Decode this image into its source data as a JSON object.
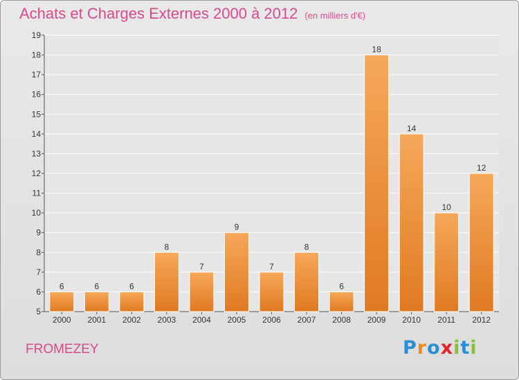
{
  "title": "Achats et Charges Externes 2000 à 2012",
  "subtitle": "(en milliers d'€)",
  "location": "FROMEZEY",
  "brand": {
    "text": "Proxiti",
    "letters": [
      "P",
      "r",
      "o",
      "x",
      "i",
      "t",
      "i"
    ],
    "colors": [
      "#2a8fd6",
      "#f08a1c",
      "#2a8fd6",
      "#e0242b",
      "#86c232",
      "#2a8fd6",
      "#86c232"
    ]
  },
  "colors": {
    "title": "#d84a8c",
    "bar_light": "#f6a85a",
    "bar_dark": "#e07a22"
  },
  "chart_data": {
    "type": "bar",
    "categories": [
      "2000",
      "2001",
      "2002",
      "2003",
      "2004",
      "2005",
      "2006",
      "2007",
      "2008",
      "2009",
      "2010",
      "2011",
      "2012"
    ],
    "values": [
      6,
      6,
      6,
      8,
      7,
      9,
      7,
      8,
      6,
      18,
      14,
      10,
      12
    ],
    "ylim": [
      5,
      19
    ],
    "yticks": [
      5,
      6,
      7,
      8,
      9,
      10,
      11,
      12,
      13,
      14,
      15,
      16,
      17,
      18,
      19
    ],
    "xlabel": "",
    "ylabel": "",
    "grid": true
  }
}
